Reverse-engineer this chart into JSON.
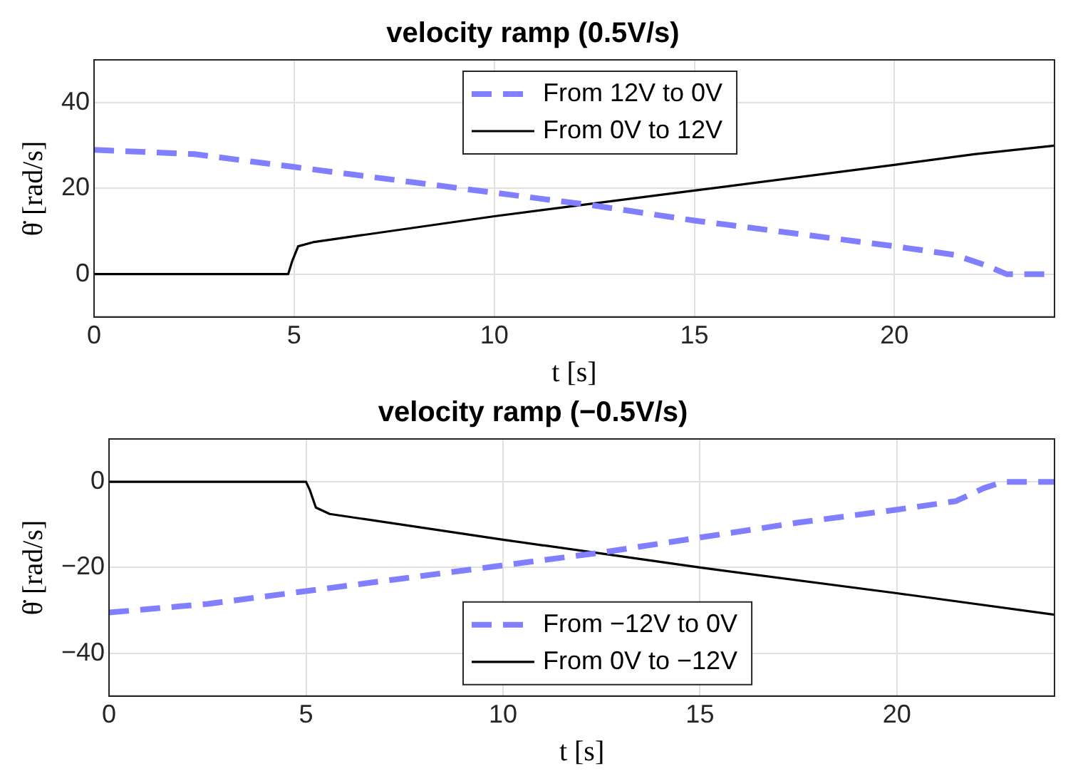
{
  "chart_data": [
    {
      "type": "line",
      "title": "velocity ramp (0.5V/s)",
      "xlabel": "t [s]",
      "ylabel": "θ̇ [rad/s]",
      "xlim": [
        0,
        24
      ],
      "xticks": [
        0,
        5,
        10,
        15,
        20
      ],
      "ylim": [
        -10,
        50
      ],
      "yticks": [
        0,
        20,
        40
      ],
      "grid": true,
      "legend": "top",
      "series": [
        {
          "name": "From 12V to 0V",
          "color": "#7f7fff",
          "line_style": "dashed",
          "x": [
            0,
            2.5,
            5,
            7.5,
            10,
            12.5,
            15,
            17.5,
            20,
            21.5,
            22.3,
            22.8,
            24
          ],
          "values": [
            29,
            28,
            25,
            22,
            19,
            16,
            12.5,
            9.5,
            6.5,
            4.5,
            2,
            0,
            0
          ]
        },
        {
          "name": "From 0V to 12V",
          "color": "#000000",
          "line_style": "solid",
          "x": [
            0,
            4.85,
            4.95,
            5.1,
            5.5,
            10,
            15,
            20,
            22,
            24
          ],
          "values": [
            0,
            0,
            3,
            6.5,
            7.5,
            13.5,
            19.5,
            25.5,
            28,
            30
          ]
        }
      ]
    },
    {
      "type": "line",
      "title": "velocity ramp (−0.5V/s)",
      "xlabel": "t [s]",
      "ylabel": "θ̇ [rad/s]",
      "xlim": [
        0,
        24
      ],
      "xticks": [
        0,
        5,
        10,
        15,
        20
      ],
      "ylim": [
        -50,
        10
      ],
      "yticks": [
        {
          "value": -40,
          "label": "−40"
        },
        {
          "value": -20,
          "label": "−20"
        },
        0
      ],
      "grid": true,
      "legend": "bottom",
      "series": [
        {
          "name": "From −12V to 0V",
          "color": "#7f7fff",
          "line_style": "dashed",
          "x": [
            0,
            2.5,
            5,
            7.5,
            10,
            12.5,
            15,
            17.5,
            20,
            21.5,
            22.2,
            22.7,
            24
          ],
          "values": [
            -30.5,
            -28.5,
            -25.5,
            -22.5,
            -19.5,
            -16.5,
            -13,
            -9.5,
            -6.5,
            -4.5,
            -1.5,
            0,
            0
          ]
        },
        {
          "name": "From 0V to −12V",
          "color": "#000000",
          "line_style": "solid",
          "x": [
            0,
            5,
            5.1,
            5.25,
            5.6,
            10,
            15,
            20,
            24
          ],
          "values": [
            0,
            0,
            -2,
            -6,
            -7.5,
            -13.5,
            -20,
            -26,
            -31
          ]
        }
      ]
    }
  ]
}
